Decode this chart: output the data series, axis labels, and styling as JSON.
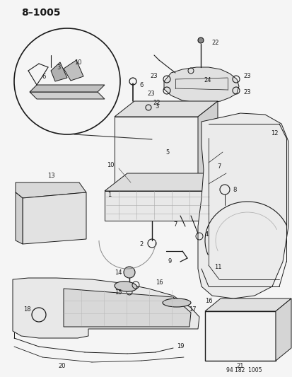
{
  "title": "8–1005",
  "footer": "94 182  1005",
  "bg_color": "#f5f5f5",
  "fg_color": "#1a1a1a",
  "figsize": [
    4.14,
    5.33
  ],
  "dpi": 100,
  "title_fs": 10,
  "label_fs": 6.5
}
